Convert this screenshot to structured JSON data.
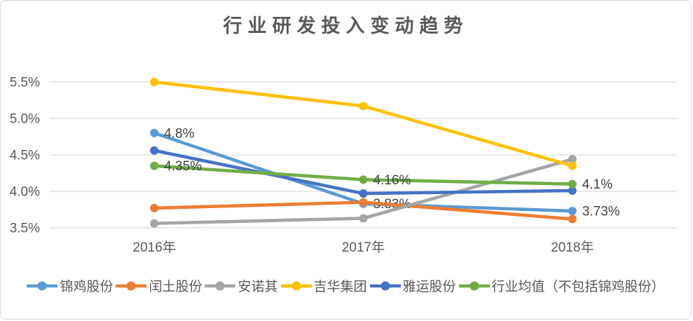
{
  "chart_data": {
    "type": "line",
    "title": "行业研发投入变动趋势",
    "categories": [
      "2016年",
      "2017年",
      "2018年"
    ],
    "series": [
      {
        "name": "锦鸡股份",
        "color": "#5B9BD5",
        "values": [
          4.8,
          3.83,
          3.73
        ],
        "labels": [
          "4.8%",
          "3.83%",
          "3.73%"
        ]
      },
      {
        "name": "闰土股份",
        "color": "#ED7D31",
        "values": [
          3.77,
          3.85,
          3.62
        ],
        "labels": null
      },
      {
        "name": "安诺其",
        "color": "#A5A5A5",
        "values": [
          3.56,
          3.63,
          4.44
        ],
        "labels": null
      },
      {
        "name": "吉华集团",
        "color": "#FFC000",
        "values": [
          5.5,
          5.17,
          4.35
        ],
        "labels": null
      },
      {
        "name": "雅运股份",
        "color": "#4472C4",
        "values": [
          4.56,
          3.97,
          4.01
        ],
        "labels": null
      },
      {
        "name": "行业均值（不包括锦鸡股份）",
        "color": "#70AD47",
        "values": [
          4.35,
          4.16,
          4.1
        ],
        "labels": [
          "4.35%",
          "4.16%",
          "4.1%"
        ]
      }
    ],
    "y_axis": {
      "ticks": [
        "5.5%",
        "5.0%",
        "4.5%",
        "4.0%",
        "3.5%"
      ],
      "tick_values": [
        5.5,
        5.0,
        4.5,
        4.0,
        3.5
      ],
      "min": 3.5,
      "max": 5.5
    },
    "xlabel": "",
    "ylabel": "",
    "grid": true,
    "legend_position": "bottom",
    "colors": {
      "grid": "#D9D9D9",
      "axis_text": "#595959",
      "data_label": "#404040",
      "title_text": "#595959",
      "border": "#D9D9D9",
      "background": "#FFFFFF"
    }
  }
}
